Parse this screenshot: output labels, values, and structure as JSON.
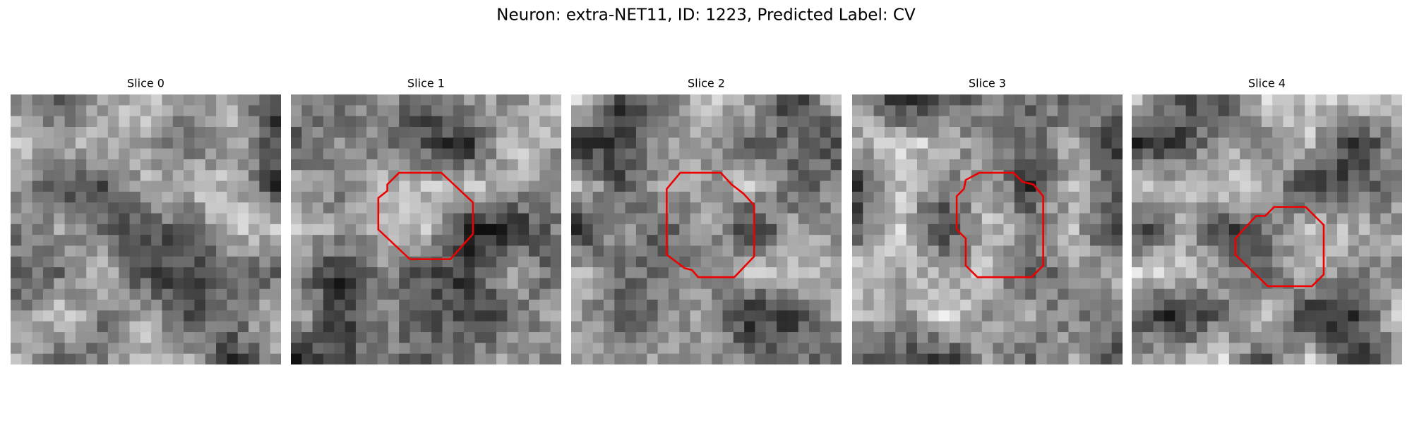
{
  "title": "Neuron: extra-NET11, ID: 1223, Predicted Label: CV",
  "panels": [
    {
      "title": "Slice 0"
    },
    {
      "title": "Slice 1"
    },
    {
      "title": "Slice 2"
    },
    {
      "title": "Slice 3"
    },
    {
      "title": "Slice 4"
    }
  ]
}
